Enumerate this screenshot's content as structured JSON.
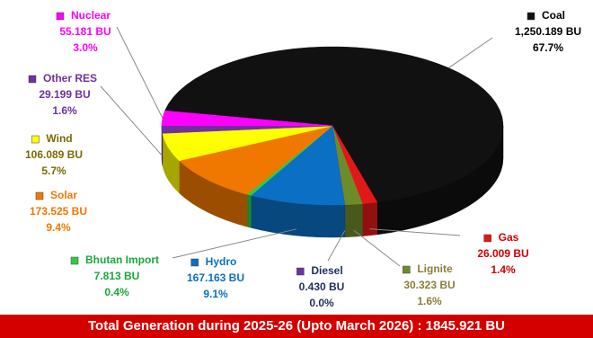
{
  "chart_data": {
    "type": "pie3d",
    "categories": [
      "Coal",
      "Gas",
      "Lignite",
      "Diesel",
      "Hydro",
      "Bhutan Import",
      "Solar",
      "Wind",
      "Other RES",
      "Nuclear"
    ],
    "values": [
      1250.189,
      26.009,
      30.323,
      0.43,
      167.163,
      7.813,
      173.525,
      106.089,
      29.199,
      55.181
    ],
    "value_labels": [
      "1,250.189 BU",
      "26.009 BU",
      "30.323 BU",
      "0.430 BU",
      "167.163 BU",
      "7.813 BU",
      "173.525 BU",
      "106.089 BU",
      "29.199 BU",
      "55.181 BU"
    ],
    "shares": [
      67.7,
      1.4,
      1.6,
      0.0,
      9.1,
      0.4,
      9.4,
      5.7,
      1.6,
      3.0
    ],
    "share_labels": [
      "67.7%",
      "1.4%",
      "1.6%",
      "0.0%",
      "9.1%",
      "0.4%",
      "9.4%",
      "5.7%",
      "1.6%",
      "3.0%"
    ],
    "colors": [
      "#111111",
      "#e01818",
      "#6e8b2a",
      "#7030a0",
      "#0b6fc4",
      "#2ecc40",
      "#f07800",
      "#ffff00",
      "#7030a0",
      "#ff00ff"
    ],
    "label_colors": [
      "#000000",
      "#d00000",
      "#8a7d3a",
      "#1f2f5a",
      "#0b6fc4",
      "#1aa83a",
      "#f07800",
      "#7a6a00",
      "#7030a0",
      "#ff00ff"
    ],
    "footer": "Total Generation during 2025-26 (Upto March 2026) : 1845.921 BU"
  }
}
